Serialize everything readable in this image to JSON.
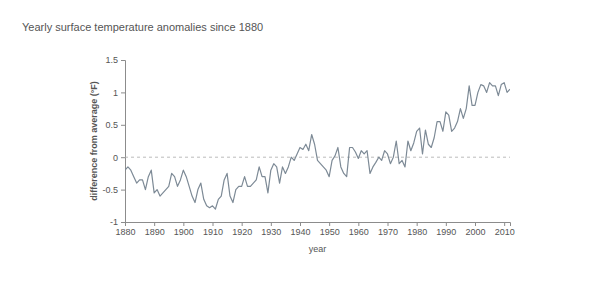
{
  "chart_data": {
    "type": "line",
    "title": "Yearly surface temperature anomalies since 1880",
    "x_label": "year",
    "y_label": "difference from average (°F)",
    "color": "#7d8a96",
    "x": [
      1880,
      1881,
      1882,
      1883,
      1884,
      1885,
      1886,
      1887,
      1888,
      1889,
      1890,
      1891,
      1892,
      1893,
      1894,
      1895,
      1896,
      1897,
      1898,
      1899,
      1900,
      1901,
      1902,
      1903,
      1904,
      1905,
      1906,
      1907,
      1908,
      1909,
      1910,
      1911,
      1912,
      1913,
      1914,
      1915,
      1916,
      1917,
      1918,
      1919,
      1920,
      1921,
      1922,
      1923,
      1924,
      1925,
      1926,
      1927,
      1928,
      1929,
      1930,
      1931,
      1932,
      1933,
      1934,
      1935,
      1936,
      1937,
      1938,
      1939,
      1940,
      1941,
      1942,
      1943,
      1944,
      1945,
      1946,
      1947,
      1948,
      1949,
      1950,
      1951,
      1952,
      1953,
      1954,
      1955,
      1956,
      1957,
      1958,
      1959,
      1960,
      1961,
      1962,
      1963,
      1964,
      1965,
      1966,
      1967,
      1968,
      1969,
      1970,
      1971,
      1972,
      1973,
      1974,
      1975,
      1976,
      1977,
      1978,
      1979,
      1980,
      1981,
      1982,
      1983,
      1984,
      1985,
      1986,
      1987,
      1988,
      1989,
      1990,
      1991,
      1992,
      1993,
      1994,
      1995,
      1996,
      1997,
      1998,
      1999,
      2000,
      2001,
      2002,
      2003,
      2004,
      2005,
      2006,
      2007,
      2008,
      2009,
      2010,
      2011,
      2012
    ],
    "values": [
      -0.2,
      -0.15,
      -0.2,
      -0.3,
      -0.4,
      -0.35,
      -0.35,
      -0.5,
      -0.3,
      -0.2,
      -0.55,
      -0.5,
      -0.6,
      -0.55,
      -0.5,
      -0.45,
      -0.25,
      -0.3,
      -0.45,
      -0.35,
      -0.2,
      -0.3,
      -0.45,
      -0.6,
      -0.7,
      -0.5,
      -0.4,
      -0.65,
      -0.75,
      -0.78,
      -0.75,
      -0.8,
      -0.65,
      -0.6,
      -0.35,
      -0.25,
      -0.6,
      -0.7,
      -0.5,
      -0.45,
      -0.45,
      -0.3,
      -0.45,
      -0.45,
      -0.4,
      -0.35,
      -0.15,
      -0.3,
      -0.3,
      -0.55,
      -0.2,
      -0.1,
      -0.15,
      -0.4,
      -0.15,
      -0.25,
      -0.15,
      0.0,
      -0.05,
      0.05,
      0.15,
      0.12,
      0.2,
      0.1,
      0.35,
      0.2,
      -0.05,
      -0.1,
      -0.15,
      -0.2,
      -0.3,
      -0.05,
      0.02,
      0.15,
      -0.15,
      -0.25,
      -0.3,
      0.15,
      0.15,
      0.08,
      -0.02,
      0.1,
      0.05,
      0.1,
      -0.25,
      -0.15,
      -0.08,
      0.0,
      -0.05,
      0.1,
      0.05,
      -0.1,
      0.0,
      0.25,
      -0.1,
      -0.05,
      -0.15,
      0.25,
      0.1,
      0.22,
      0.4,
      0.45,
      0.05,
      0.42,
      0.2,
      0.15,
      0.3,
      0.55,
      0.55,
      0.4,
      0.7,
      0.65,
      0.4,
      0.45,
      0.55,
      0.75,
      0.6,
      0.75,
      1.1,
      0.8,
      0.8,
      1.0,
      1.12,
      1.1,
      1.0,
      1.15,
      1.1,
      1.1,
      0.95,
      1.12,
      1.15,
      1.0,
      1.05
    ],
    "xlim": [
      1880,
      2012
    ],
    "xticks": [
      1880,
      1890,
      1900,
      1910,
      1920,
      1930,
      1940,
      1950,
      1960,
      1970,
      1980,
      1990,
      2000,
      2010
    ],
    "ylim": [
      -1,
      1.5
    ],
    "yticks": [
      -1,
      -0.5,
      0,
      0.5,
      1,
      1.5
    ],
    "reference_line": 0,
    "grid": false
  }
}
